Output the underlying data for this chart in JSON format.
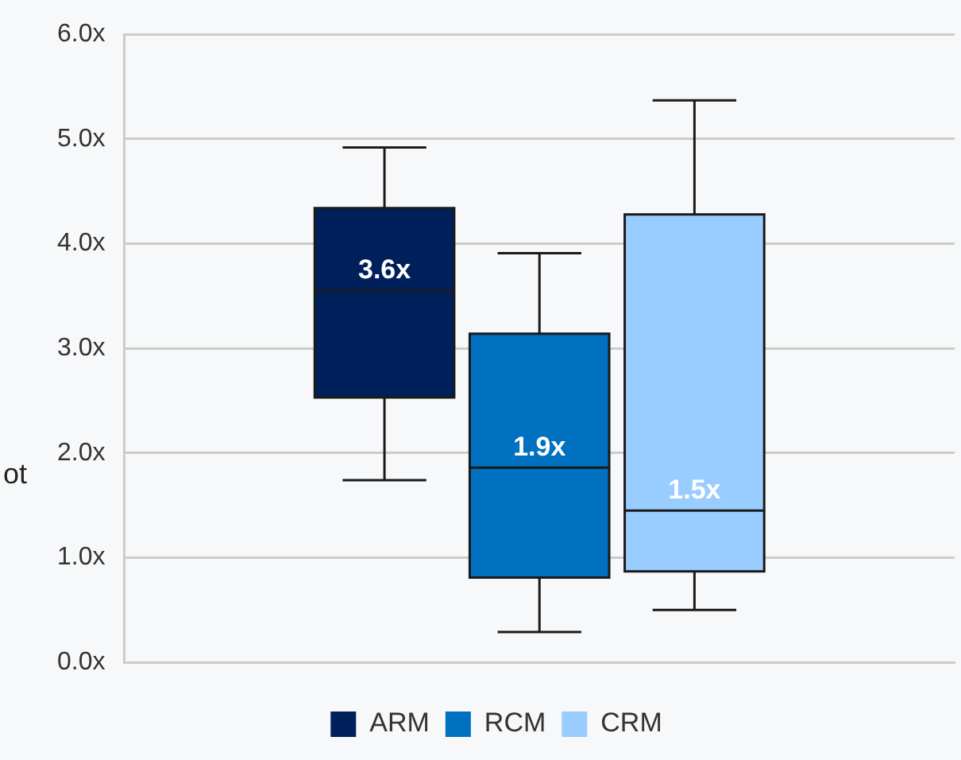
{
  "chart_data": {
    "type": "box",
    "ylabel": "ot",
    "categories": [
      null
    ],
    "series": [
      {
        "name": "ARM",
        "color": "#00205b",
        "boxes": [
          {
            "low": 1.74,
            "q1": 2.53,
            "median": 3.55,
            "q3": 4.34,
            "high": 4.92
          }
        ],
        "value_labels": [
          "3.6x"
        ]
      },
      {
        "name": "RCM",
        "color": "#0070c0",
        "boxes": [
          {
            "low": 0.29,
            "q1": 0.81,
            "median": 1.86,
            "q3": 3.14,
            "high": 3.91
          }
        ],
        "value_labels": [
          "1.9x"
        ]
      },
      {
        "name": "CRM",
        "color": "#99ccff",
        "boxes": [
          {
            "low": 0.5,
            "q1": 0.87,
            "median": 1.45,
            "q3": 4.28,
            "high": 5.37
          }
        ],
        "value_labels": [
          "1.5x"
        ]
      }
    ],
    "ylim": [
      0,
      6
    ],
    "yticks": [
      {
        "value": 0,
        "label": "0.0x"
      },
      {
        "value": 1,
        "label": "1.0x"
      },
      {
        "value": 2,
        "label": "2.0x"
      },
      {
        "value": 3,
        "label": "3.0x"
      },
      {
        "value": 4,
        "label": "4.0x"
      },
      {
        "value": 5,
        "label": "5.0x"
      },
      {
        "value": 6,
        "label": "6.0x"
      }
    ],
    "grid": "y",
    "legend": "bottom"
  }
}
